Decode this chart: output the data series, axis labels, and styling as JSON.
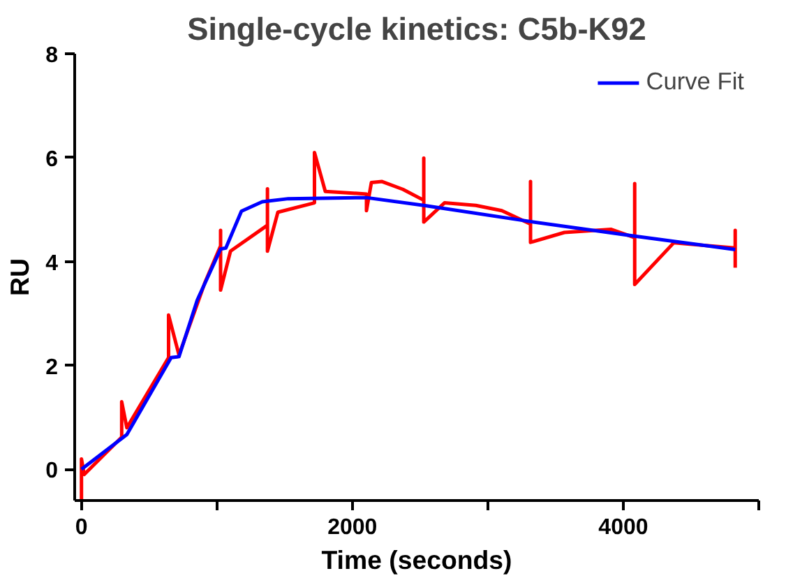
{
  "chart_data": {
    "type": "line",
    "title": "Single-cycle kinetics: C5b-K92",
    "xlabel": "Time (seconds)",
    "ylabel": "RU",
    "xlim": [
      -50,
      5000
    ],
    "ylim": [
      -0.6,
      8
    ],
    "xticks": [
      0,
      {
        "value": 1000,
        "label": null
      },
      2000,
      {
        "value": 3000,
        "label": null
      },
      4000,
      {
        "value": 5000,
        "label": null
      }
    ],
    "yticks": [
      0,
      2,
      4,
      6,
      8
    ],
    "grid": false,
    "legend": "top right",
    "marker": "none",
    "line_style": "solid",
    "series": [
      {
        "color": "#ff0000",
        "x": [
          0,
          0,
          20,
          297,
          297,
          335,
          643,
          643,
          720,
          912,
          1027,
          1027,
          1027,
          1100,
          1373,
          1373,
          1373,
          1450,
          1720,
          1720,
          1800,
          2104,
          2104,
          2140,
          2219,
          2373,
          2527,
          2527,
          2527,
          2680,
          2911,
          3103,
          3315,
          3315,
          3315,
          3565,
          3911,
          4084,
          4084,
          4084,
          4372,
          4642,
          4826,
          4826,
          4826
        ],
        "values": [
          -0.6,
          0.2,
          -0.1,
          0.62,
          1.3,
          0.8,
          2.15,
          2.97,
          2.2,
          3.6,
          4.3,
          4.6,
          3.45,
          4.2,
          4.7,
          5.4,
          4.2,
          4.95,
          5.13,
          6.1,
          5.35,
          5.3,
          4.98,
          5.52,
          5.54,
          5.39,
          5.18,
          5.99,
          4.76,
          5.13,
          5.08,
          4.98,
          4.72,
          5.54,
          4.37,
          4.56,
          4.62,
          4.46,
          5.5,
          3.56,
          4.36,
          4.3,
          4.26,
          4.6,
          3.88
        ]
      },
      {
        "name": "Curve Fit",
        "color": "#0000ff",
        "x": [
          0,
          335,
          662,
          720,
          855,
          1027,
          1066,
          1181,
          1335,
          1527,
          2104,
          2527,
          3315,
          4084,
          4826
        ],
        "values": [
          0,
          0.67,
          2.15,
          2.17,
          3.26,
          4.24,
          4.26,
          4.97,
          5.15,
          5.21,
          5.23,
          5.08,
          4.77,
          4.49,
          4.23
        ]
      }
    ]
  }
}
